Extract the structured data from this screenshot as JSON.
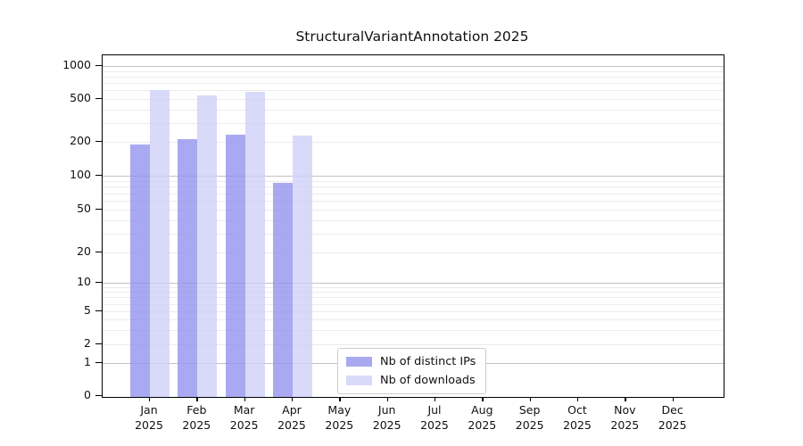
{
  "title": "StructuralVariantAnnotation 2025",
  "chart_data": {
    "type": "bar",
    "title": "StructuralVariantAnnotation 2025",
    "categories": [
      "Jan 2025",
      "Feb 2025",
      "Mar 2025",
      "Apr 2025",
      "May 2025",
      "Jun 2025",
      "Jul 2025",
      "Aug 2025",
      "Sep 2025",
      "Oct 2025",
      "Nov 2025",
      "Dec 2025"
    ],
    "month_labels": [
      "Jan",
      "Feb",
      "Mar",
      "Apr",
      "May",
      "Jun",
      "Jul",
      "Aug",
      "Sep",
      "Oct",
      "Nov",
      "Dec"
    ],
    "year_label": "2025",
    "series": [
      {
        "name": "Nb of distinct IPs",
        "color": "#9494ee",
        "rendered_color": "#a9a9f1",
        "opacity": 0.8,
        "values": [
          189,
          213,
          233,
          87,
          null,
          null,
          null,
          null,
          null,
          null,
          null,
          null
        ]
      },
      {
        "name": "Nb of downloads",
        "color": "#d0d0f7",
        "rendered_color": "#d9d9f9",
        "opacity": 0.8,
        "values": [
          604,
          536,
          581,
          227,
          null,
          null,
          null,
          null,
          null,
          null,
          null,
          null
        ]
      }
    ],
    "xlabel": "",
    "ylabel": "",
    "yscale": "symlog",
    "ylim": [
      0,
      1300
    ],
    "yticks": [
      0,
      1,
      2,
      5,
      10,
      20,
      50,
      100,
      200,
      500,
      1000
    ],
    "minor_yticks": [
      3,
      4,
      6,
      7,
      8,
      9,
      30,
      40,
      60,
      70,
      80,
      90,
      300,
      400,
      600,
      700,
      800,
      900
    ],
    "grid": true,
    "legend_position": "lower center"
  },
  "colors": {
    "grid_major": "#c2c2c2",
    "grid_minor": "#ececec",
    "spine": "#000000",
    "background": "#ffffff"
  }
}
